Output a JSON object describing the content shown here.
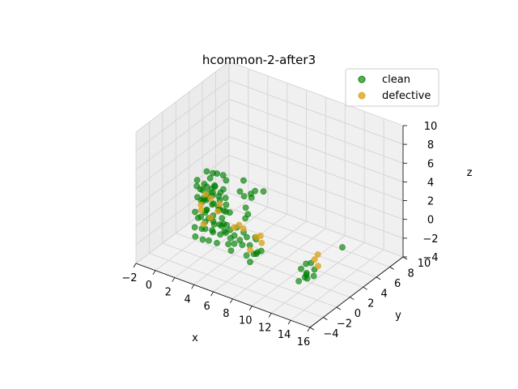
{
  "chart_data": {
    "type": "scatter",
    "projection": "3d",
    "title": "hcommon-2-after3",
    "xlabel": "x",
    "ylabel": "y",
    "zlabel": "z",
    "xlim": [
      -2,
      16
    ],
    "ylim": [
      -4,
      10
    ],
    "zlim": [
      -4,
      10
    ],
    "xticks": [
      -2,
      0,
      2,
      4,
      6,
      8,
      10,
      12,
      14,
      16
    ],
    "yticks": [
      -4,
      -2,
      0,
      2,
      4,
      6,
      8,
      10
    ],
    "zticks": [
      -4,
      -2,
      0,
      2,
      4,
      6,
      8,
      10
    ],
    "grid": true,
    "legend_position": "top-right",
    "series": [
      {
        "name": "clean",
        "color": "#008000",
        "alpha": 0.65,
        "points": [
          [
            0.2,
            2.0,
            2.5
          ],
          [
            0.3,
            1.8,
            2.0
          ],
          [
            0.4,
            2.2,
            1.5
          ],
          [
            0.5,
            1.6,
            1.0
          ],
          [
            0.6,
            2.4,
            0.5
          ],
          [
            0.2,
            2.6,
            0.0
          ],
          [
            0.4,
            1.4,
            -0.5
          ],
          [
            0.6,
            2.8,
            -1.0
          ],
          [
            0.3,
            2.0,
            -1.5
          ],
          [
            0.5,
            1.2,
            -2.0
          ],
          [
            0.7,
            2.0,
            -2.5
          ],
          [
            0.8,
            2.2,
            2.2
          ],
          [
            0.9,
            1.8,
            1.8
          ],
          [
            1.0,
            2.4,
            1.2
          ],
          [
            1.1,
            1.6,
            0.8
          ],
          [
            0.8,
            2.6,
            0.3
          ],
          [
            1.2,
            2.0,
            -0.3
          ],
          [
            1.0,
            1.4,
            -0.8
          ],
          [
            1.3,
            2.8,
            -1.3
          ],
          [
            0.9,
            2.2,
            -1.8
          ],
          [
            1.1,
            1.9,
            -2.3
          ],
          [
            1.2,
            2.5,
            2.8
          ],
          [
            1.4,
            1.7,
            2.4
          ],
          [
            1.5,
            2.3,
            1.9
          ],
          [
            1.6,
            1.5,
            1.4
          ],
          [
            1.3,
            2.7,
            0.9
          ],
          [
            1.7,
            2.1,
            0.4
          ],
          [
            1.5,
            1.3,
            -0.1
          ],
          [
            1.8,
            2.9,
            -0.6
          ],
          [
            1.4,
            2.0,
            -1.1
          ],
          [
            1.6,
            2.4,
            -1.6
          ],
          [
            1.9,
            1.8,
            -2.1
          ],
          [
            1.7,
            2.2,
            -2.6
          ],
          [
            2.0,
            2.0,
            2.6
          ],
          [
            2.1,
            1.6,
            2.1
          ],
          [
            2.2,
            2.6,
            1.6
          ],
          [
            2.3,
            1.4,
            1.1
          ],
          [
            2.0,
            2.8,
            0.6
          ],
          [
            2.4,
            2.2,
            0.1
          ],
          [
            2.2,
            1.2,
            -0.4
          ],
          [
            2.5,
            2.4,
            -0.9
          ],
          [
            2.1,
            1.8,
            -1.4
          ],
          [
            2.3,
            2.6,
            -1.9
          ],
          [
            2.6,
            2.0,
            -2.4
          ],
          [
            2.4,
            1.5,
            2.9
          ],
          [
            2.7,
            2.3,
            2.3
          ],
          [
            2.5,
            1.9,
            1.7
          ],
          [
            2.8,
            2.5,
            1.3
          ],
          [
            2.6,
            1.7,
            0.7
          ],
          [
            2.9,
            2.1,
            0.2
          ],
          [
            2.7,
            2.7,
            -0.3
          ],
          [
            3.0,
            1.3,
            -0.8
          ],
          [
            2.8,
            2.2,
            -1.3
          ],
          [
            3.1,
            1.9,
            -1.8
          ],
          [
            2.9,
            2.4,
            -2.3
          ],
          [
            0.5,
            3.0,
            3.0
          ],
          [
            1.0,
            3.2,
            2.9
          ],
          [
            1.5,
            3.1,
            3.1
          ],
          [
            2.0,
            3.3,
            3.0
          ],
          [
            2.5,
            3.0,
            2.8
          ],
          [
            0.7,
            1.0,
            -2.8
          ],
          [
            1.4,
            1.1,
            -2.9
          ],
          [
            2.1,
            1.0,
            -2.7
          ],
          [
            2.8,
            1.2,
            -2.8
          ],
          [
            3.2,
            2.0,
            1.0
          ],
          [
            3.3,
            2.4,
            0.0
          ],
          [
            3.4,
            1.8,
            -1.0
          ],
          [
            3.2,
            2.6,
            -2.0
          ],
          [
            4.0,
            1.5,
            -2.0
          ],
          [
            4.3,
            2.0,
            -1.0
          ],
          [
            4.6,
            1.2,
            -2.2
          ],
          [
            4.8,
            2.3,
            -1.5
          ],
          [
            5.0,
            1.8,
            -2.5
          ],
          [
            4.2,
            2.6,
            -2.7
          ],
          [
            4.5,
            3.0,
            -0.5
          ],
          [
            4.9,
            2.8,
            0.2
          ],
          [
            5.2,
            2.2,
            -1.8
          ],
          [
            4.4,
            1.0,
            -2.9
          ],
          [
            3.8,
            3.2,
            2.0
          ],
          [
            4.1,
            3.4,
            1.5
          ],
          [
            3.9,
            3.6,
            3.0
          ],
          [
            4.4,
            3.2,
            0.5
          ],
          [
            3.5,
            2.8,
            -2.6
          ],
          [
            3.7,
            1.6,
            -2.8
          ],
          [
            5.2,
            2.8,
            2.5
          ],
          [
            5.0,
            3.2,
            1.8
          ],
          [
            5.5,
            3.0,
            2.8
          ],
          [
            6.0,
            1.5,
            -2.0
          ],
          [
            6.5,
            1.6,
            -1.0
          ],
          [
            6.0,
            1.0,
            -2.8
          ],
          [
            6.8,
            1.3,
            -2.5
          ],
          [
            6.3,
            2.0,
            -1.5
          ],
          [
            6.5,
            0.8,
            -3.2
          ],
          [
            7.0,
            1.2,
            -2.2
          ],
          [
            6.2,
            1.8,
            -3.0
          ],
          [
            6.7,
            2.2,
            -2.7
          ],
          [
            5.0,
            5.0,
            1.5
          ],
          [
            11.3,
            1.5,
            -2.5
          ],
          [
            11.6,
            1.8,
            -2.0
          ],
          [
            11.9,
            1.2,
            -3.0
          ],
          [
            11.5,
            2.0,
            -3.3
          ],
          [
            11.8,
            1.6,
            -2.8
          ],
          [
            12.2,
            2.2,
            -2.6
          ],
          [
            11.4,
            1.0,
            -3.5
          ],
          [
            12.0,
            1.4,
            -3.2
          ],
          [
            11.7,
            2.4,
            -2.2
          ],
          [
            12.4,
            1.8,
            -3.0
          ],
          [
            13.3,
            4.8,
            -1.2
          ]
        ]
      },
      {
        "name": "defective",
        "color": "#DAA520",
        "alpha": 0.8,
        "points": [
          [
            0.6,
            2.0,
            0.0
          ],
          [
            0.4,
            2.3,
            -0.8
          ],
          [
            1.0,
            1.8,
            -1.8
          ],
          [
            0.8,
            2.4,
            1.0
          ],
          [
            1.6,
            2.0,
            -1.0
          ],
          [
            1.2,
            2.6,
            0.6
          ],
          [
            2.2,
            2.2,
            -0.2
          ],
          [
            2.6,
            1.9,
            0.9
          ],
          [
            4.4,
            2.2,
            -0.8
          ],
          [
            4.7,
            2.4,
            -1.2
          ],
          [
            3.6,
            2.6,
            -1.6
          ],
          [
            6.4,
            1.9,
            -1.2
          ],
          [
            6.9,
            1.8,
            -0.8
          ],
          [
            6.1,
            1.4,
            -2.4
          ],
          [
            6.6,
            2.4,
            -2.0
          ],
          [
            11.8,
            2.8,
            -2.0
          ],
          [
            12.0,
            3.0,
            -1.5
          ],
          [
            12.3,
            2.6,
            -2.4
          ]
        ]
      }
    ]
  }
}
